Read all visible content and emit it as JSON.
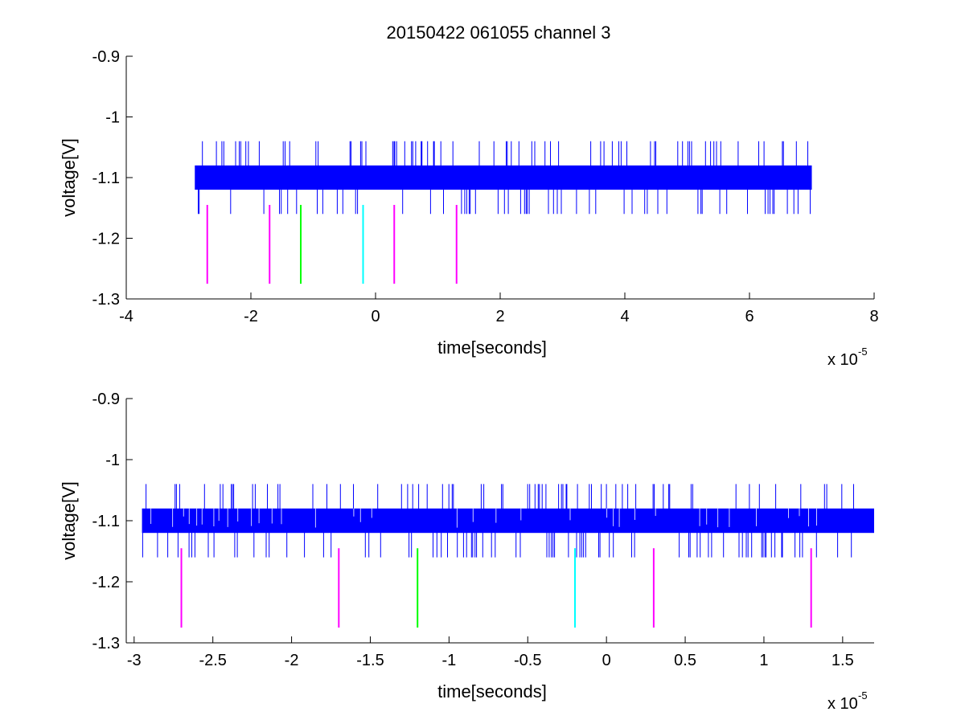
{
  "figure_title": "20150422 061055 channel 3",
  "chart_data": [
    {
      "type": "line",
      "title": "20150422 061055 channel 3",
      "xlabel": "time[seconds]",
      "ylabel": "voltage[V]",
      "x_exponent_label": "x 10",
      "x_exponent": "-5",
      "xlim": [
        -4,
        8
      ],
      "ylim": [
        -1.3,
        -0.9
      ],
      "xticks": [
        "-4",
        "-2",
        "0",
        "2",
        "4",
        "6",
        "8"
      ],
      "yticks": [
        "-0.9",
        "-1",
        "-1.1",
        "-1.2",
        "-1.3"
      ],
      "grid": false,
      "series": [
        {
          "color": "#0000ff",
          "x_range": [
            -2.9,
            7.0
          ],
          "baseline_band": [
            -1.12,
            -1.08
          ],
          "spike_high": -1.04,
          "spike_low": -1.16
        }
      ],
      "markers": [
        {
          "x": -2.7,
          "y": [
            -1.275,
            -1.145
          ],
          "color": "#ff00ff"
        },
        {
          "x": -1.7,
          "y": [
            -1.275,
            -1.145
          ],
          "color": "#ff00ff"
        },
        {
          "x": -1.2,
          "y": [
            -1.275,
            -1.145
          ],
          "color": "#00ff00"
        },
        {
          "x": -0.2,
          "y": [
            -1.275,
            -1.145
          ],
          "color": "#00ffff"
        },
        {
          "x": 0.3,
          "y": [
            -1.275,
            -1.145
          ],
          "color": "#ff00ff"
        },
        {
          "x": 1.3,
          "y": [
            -1.275,
            -1.145
          ],
          "color": "#ff00ff"
        }
      ]
    },
    {
      "type": "line",
      "title": "",
      "xlabel": "time[seconds]",
      "ylabel": "voltage[V]",
      "x_exponent_label": "x 10",
      "x_exponent": "-5",
      "xlim": [
        -3.05,
        1.7
      ],
      "ylim": [
        -1.3,
        -0.9
      ],
      "xticks": [
        "-3",
        "-2.5",
        "-2",
        "-1.5",
        "-1",
        "-0.5",
        "0",
        "0.5",
        "1",
        "1.5"
      ],
      "yticks": [
        "-0.9",
        "-1",
        "-1.1",
        "-1.2",
        "-1.3"
      ],
      "grid": false,
      "series": [
        {
          "color": "#0000ff",
          "x_range": [
            -2.95,
            1.7
          ],
          "baseline_band": [
            -1.12,
            -1.08
          ],
          "spike_high": -1.04,
          "spike_low": -1.16
        }
      ],
      "markers": [
        {
          "x": -2.7,
          "y": [
            -1.275,
            -1.145
          ],
          "color": "#ff00ff"
        },
        {
          "x": -1.7,
          "y": [
            -1.275,
            -1.145
          ],
          "color": "#ff00ff"
        },
        {
          "x": -1.2,
          "y": [
            -1.275,
            -1.145
          ],
          "color": "#00ff00"
        },
        {
          "x": -0.2,
          "y": [
            -1.275,
            -1.145
          ],
          "color": "#00ffff"
        },
        {
          "x": 0.3,
          "y": [
            -1.275,
            -1.145
          ],
          "color": "#ff00ff"
        },
        {
          "x": 1.3,
          "y": [
            -1.275,
            -1.145
          ],
          "color": "#ff00ff"
        }
      ]
    }
  ]
}
